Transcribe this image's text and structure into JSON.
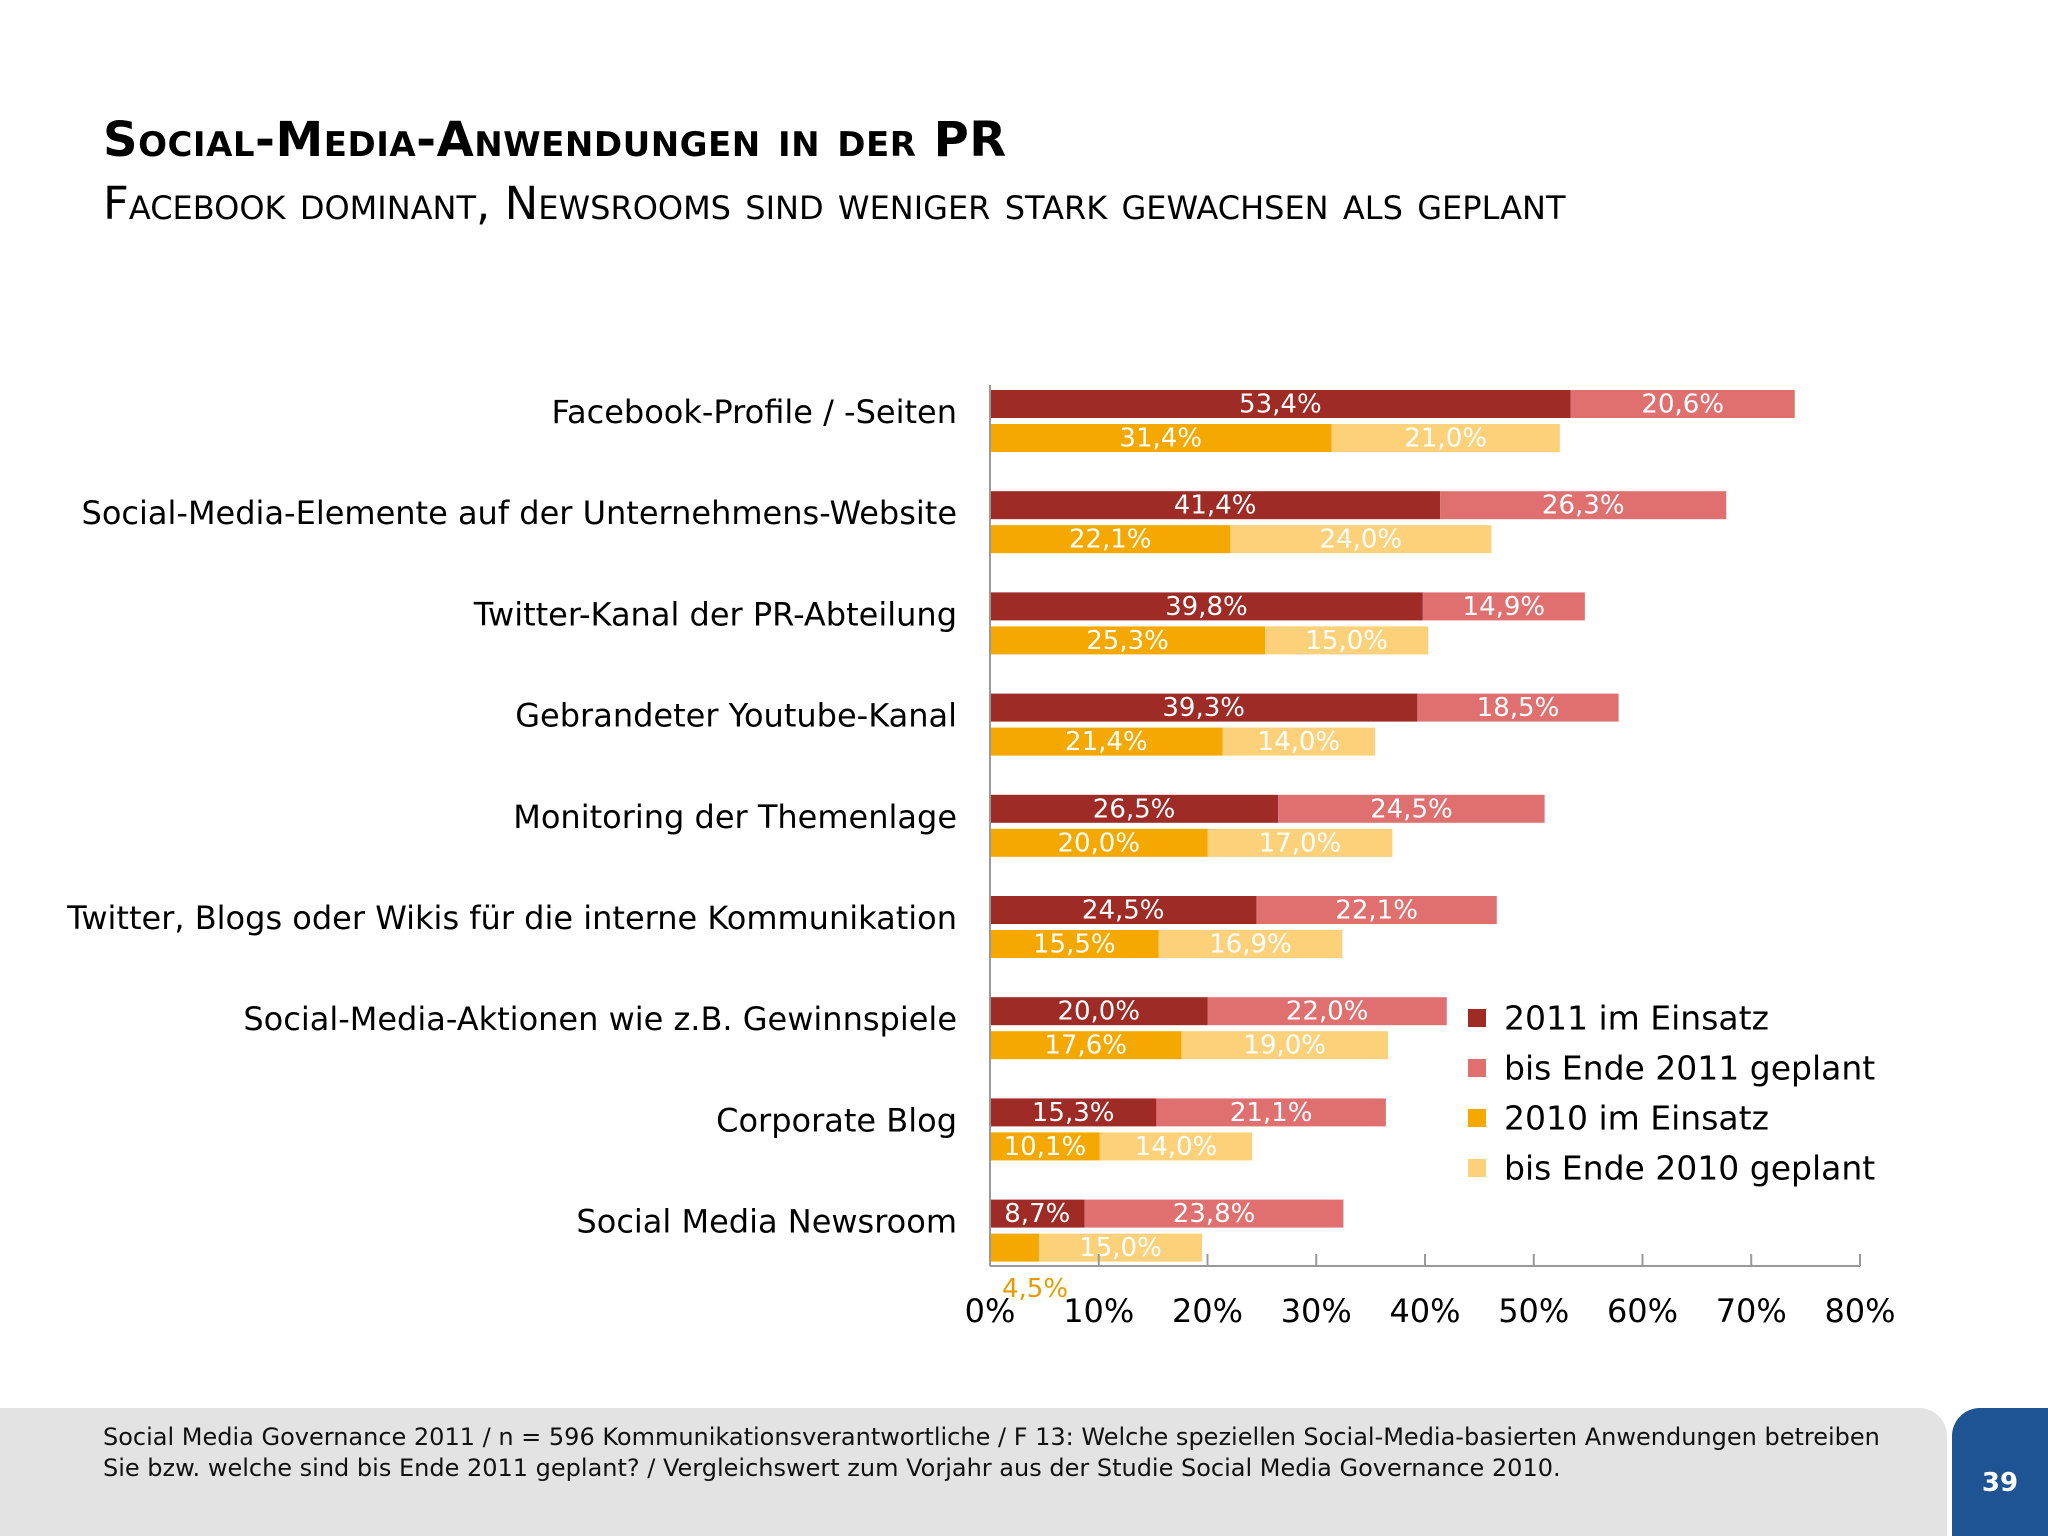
{
  "slide": {
    "title": "Social-Media-Anwendungen in der PR",
    "subtitle": "Facebook dominant, Newsrooms sind weniger stark gewachsen als geplant",
    "footer": "Social Media Governance 2011 / n = 596 Kommunikationsverantwortliche / F 13: Welche speziellen Social-Media-basierten Anwendungen betreiben Sie bzw. welche sind bis Ende 2011 geplant? / Vergleichswert zum Vorjahr aus der Studie Social Media Governance 2010.",
    "page_number": "39"
  },
  "chart_data": {
    "type": "bar",
    "orientation": "horizontal",
    "stacked": true,
    "categories": [
      "Facebook-Profile / -Seiten",
      "Social-Media-Elemente auf der Unternehmens-Website",
      "Twitter-Kanal der PR-Abteilung",
      "Gebrandeter Youtube-Kanal",
      "Monitoring der Themenlage",
      "Twitter, Blogs oder Wikis für die interne Kommunikation",
      "Social-Media-Aktionen wie z.B. Gewinnspiele",
      "Corporate Blog",
      "Social Media Newsroom"
    ],
    "series": [
      {
        "name": "2011 im Einsatz",
        "stack": "2011",
        "color": "#9e2b25",
        "values": [
          53.4,
          41.4,
          39.8,
          39.3,
          26.5,
          24.5,
          20.0,
          15.3,
          8.7
        ],
        "labels": [
          "53,4%",
          "41,4%",
          "39,8%",
          "39,3%",
          "26,5%",
          "24,5%",
          "20,0%",
          "15,3%",
          "8,7%"
        ]
      },
      {
        "name": "bis Ende 2011 geplant",
        "stack": "2011",
        "color": "#e07070",
        "values": [
          20.6,
          26.3,
          14.9,
          18.5,
          24.5,
          22.1,
          22.0,
          21.1,
          23.8
        ],
        "labels": [
          "20,6%",
          "26,3%",
          "14,9%",
          "18,5%",
          "24,5%",
          "22,1%",
          "22,0%",
          "21,1%",
          "23,8%"
        ]
      },
      {
        "name": "2010 im Einsatz",
        "stack": "2010",
        "color": "#f5a800",
        "values": [
          31.4,
          22.1,
          25.3,
          21.4,
          20.0,
          15.5,
          17.6,
          10.1,
          4.5
        ],
        "labels": [
          "31,4%",
          "22,1%",
          "25,3%",
          "21,4%",
          "20,0%",
          "15,5%",
          "17,6%",
          "10,1%",
          "4,5%"
        ]
      },
      {
        "name": "bis Ende 2010 geplant",
        "stack": "2010",
        "color": "#fdd07a",
        "values": [
          21.0,
          24.0,
          15.0,
          14.0,
          17.0,
          16.9,
          19.0,
          14.0,
          15.0
        ],
        "labels": [
          "21,0%",
          "24,0%",
          "15,0%",
          "14,0%",
          "17,0%",
          "16,9%",
          "19,0%",
          "14,0%",
          "15,0%"
        ]
      }
    ],
    "xlim": [
      0,
      80
    ],
    "x_ticks": [
      0,
      10,
      20,
      30,
      40,
      50,
      60,
      70,
      80
    ],
    "x_tick_labels": [
      "0%",
      "10%",
      "20%",
      "30%",
      "40%",
      "50%",
      "60%",
      "70%",
      "80%"
    ],
    "legend_position": "right",
    "grid": false
  }
}
